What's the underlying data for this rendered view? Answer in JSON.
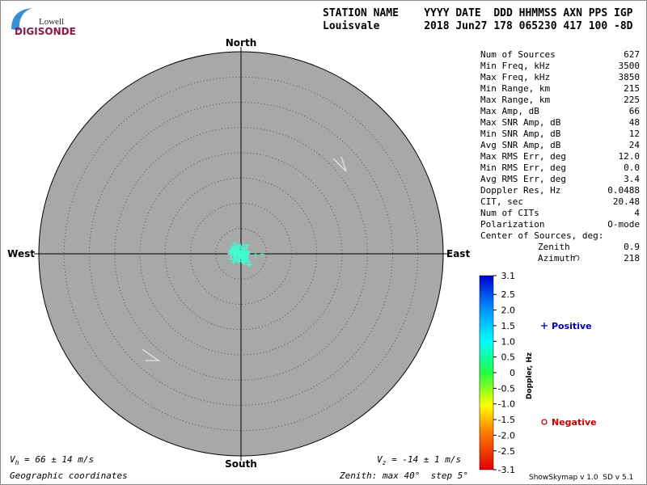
{
  "logo": {
    "top": "Lowell",
    "bottom": "DIGISONDE"
  },
  "header": {
    "lines": [
      "STATION NAME    YYYY DATE  DDD HHMMSS AXN PPS IGP",
      "Louisvale       2018 Jun27 178 065230 417 100 -8D"
    ]
  },
  "stats": {
    "rows": [
      [
        "Num of Sources",
        "627"
      ],
      [
        "Min Freq, kHz",
        "3500"
      ],
      [
        "Max Freq, kHz",
        "3850"
      ],
      [
        "Min Range, km",
        "215"
      ],
      [
        "Max Range, km",
        "225"
      ],
      [
        "Max Amp, dB",
        "66"
      ],
      [
        "Max SNR Amp, dB",
        "48"
      ],
      [
        "Min SNR Amp, dB",
        "12"
      ],
      [
        "Avg SNR Amp, dB",
        "24"
      ],
      [
        "Max RMS Err, deg",
        "12.0"
      ],
      [
        "Min RMS Err, deg",
        "0.0"
      ],
      [
        "Avg RMS Err, deg",
        "3.4"
      ],
      [
        "Doppler Res, Hz",
        "0.0488"
      ],
      [
        "CIT, sec",
        "20.48"
      ],
      [
        "Num of CITs",
        "4"
      ],
      [
        "Polarization",
        "O-mode"
      ]
    ],
    "center_title": "Center of Sources, deg:",
    "center_rows": [
      [
        "Zenith",
        "0.9"
      ],
      [
        "Azimuth",
        "218"
      ]
    ]
  },
  "footer": {
    "vh": [
      "V",
      "h",
      " = 66 ± 14 m/s"
    ],
    "vz": [
      "V",
      "z",
      " = -14 ± 1 m/s"
    ],
    "coords": "Geographic coordinates",
    "zenith": "Zenith: max 40°  step 5°",
    "version": "ShowSkymap v 1.0  SD v 5.1"
  },
  "chart_data": {
    "type": "scatter",
    "directions": {
      "north": "North",
      "south": "South",
      "east": "East",
      "west": "West"
    },
    "xlim": [
      -40,
      40
    ],
    "ylim": [
      -40,
      40
    ],
    "rlim": [
      0,
      40
    ],
    "rticks": [
      5,
      10,
      15,
      20,
      25,
      30,
      35
    ],
    "series": [
      {
        "name": "Positive",
        "color": "#3fffcf",
        "x": [
          -1.3,
          -1.9,
          -1.2,
          -0.9,
          -0.5,
          -0.1,
          0.6,
          1.3,
          1.0,
          0.5,
          0.1,
          -0.4,
          -0.9,
          -1.4,
          -1.7,
          -2.1,
          -2.2,
          -1.9,
          -1.5,
          -1.2,
          -0.7,
          -0.3,
          0.2,
          0.7,
          1.2,
          1.5,
          1.3,
          1.0,
          0.7,
          0.4,
          0.1,
          -0.1,
          -0.3,
          -0.5,
          -0.7,
          -1.0,
          -1.2,
          -1.4,
          -1.1,
          -0.6,
          -0.3,
          0.1,
          0.4,
          0.7,
          1.0,
          1.3,
          1.5,
          1.8,
          1.5,
          0.6,
          0.4,
          0.1,
          -0.4,
          -0.7,
          -1.2,
          -1.5,
          -2.0,
          0.1,
          0.2,
          0.4,
          0.5,
          0.0,
          -0.2,
          -0.4,
          -0.6,
          2.9,
          4.2,
          0.9,
          1.2,
          -0.9,
          -0.4,
          -0.6,
          -1.2,
          -1.6,
          0.7,
          1.0
        ],
        "y": [
          2.0,
          1.3,
          1.5,
          1.4,
          1.7,
          1.5,
          1.7,
          1.7,
          1.2,
          0.9,
          1.1,
          1.1,
          1.0,
          0.9,
          0.8,
          0.5,
          0.0,
          0.3,
          0.4,
          0.5,
          0.7,
          0.7,
          0.6,
          0.5,
          0.4,
          0.3,
          0.0,
          -0.2,
          -0.4,
          -0.5,
          -0.2,
          0.0,
          -0.1,
          0.1,
          0.2,
          0.0,
          -0.3,
          -0.5,
          -0.8,
          -1.0,
          -0.8,
          -0.8,
          -1.0,
          -1.2,
          -1.3,
          -1.0,
          -1.6,
          -2.2,
          -2.1,
          -1.8,
          -1.5,
          -1.4,
          -1.5,
          -1.3,
          -1.2,
          -1.7,
          -1.0,
          0.4,
          0.1,
          -0.1,
          -0.3,
          -0.4,
          -0.5,
          -0.3,
          -0.4,
          -0.2,
          -0.1,
          -0.7,
          -0.5,
          0.4,
          0.4,
          0.8,
          0.1,
          -0.1,
          0.2,
          0.1
        ]
      },
      {
        "name": "Negative",
        "color": "#cc0000",
        "x": [],
        "y": []
      }
    ],
    "colorbar": {
      "label": "Doppler, Hz",
      "lim": [
        -3.1,
        3.1
      ],
      "ticks": [
        3.1,
        2.5,
        {
          "value": 2,
          "label": "2.0"
        },
        1.5,
        {
          "value": 1,
          "label": "1.0"
        },
        0.5,
        0,
        -0.5,
        {
          "value": -1,
          "label": "-1.0"
        },
        -1.5,
        {
          "value": -2,
          "label": "-2.0"
        },
        -2.5,
        -3.1
      ]
    }
  }
}
